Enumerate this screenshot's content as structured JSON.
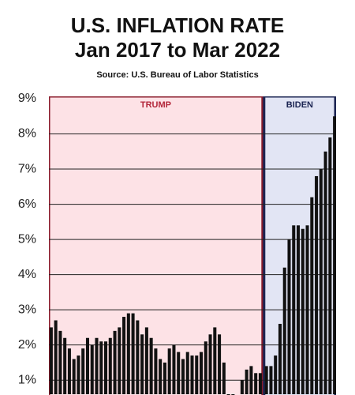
{
  "chart_data": {
    "type": "bar",
    "title": "U.S. INFLATION RATE",
    "subtitle": "Jan 2017 to Mar 2022",
    "source": "Source: U.S. Bureau of Labor Statistics",
    "regions": [
      {
        "label": "TRUMP",
        "color": "#fde2e6",
        "border": "#8a1c2c",
        "label_color": "#b3263a"
      },
      {
        "label": "BIDEN",
        "color": "#e2e5f4",
        "border": "#1b2452",
        "label_color": "#1b2452"
      }
    ],
    "categories": [
      null,
      null,
      null,
      null,
      null,
      null,
      null,
      null,
      null,
      null,
      null,
      null,
      null,
      null,
      null,
      null,
      null,
      null,
      null,
      null,
      null,
      null,
      null,
      null,
      null,
      null,
      null,
      null,
      null,
      null,
      null,
      null,
      null,
      null,
      null,
      null,
      null,
      null,
      null,
      null,
      null,
      null,
      null,
      null,
      null,
      null,
      null,
      null,
      null,
      null,
      null,
      null,
      null,
      null,
      null,
      null,
      null,
      null,
      null,
      null,
      null,
      null,
      null
    ],
    "values": [
      2.5,
      2.7,
      2.4,
      2.2,
      1.9,
      1.6,
      1.7,
      1.9,
      2.2,
      2.0,
      2.2,
      2.1,
      2.1,
      2.2,
      2.4,
      2.5,
      2.8,
      2.9,
      2.9,
      2.7,
      2.3,
      2.5,
      2.2,
      1.9,
      1.6,
      1.5,
      1.9,
      2.0,
      1.8,
      1.6,
      1.8,
      1.7,
      1.7,
      1.8,
      2.1,
      2.3,
      2.5,
      2.3,
      1.5,
      0.3,
      0.1,
      0.6,
      1.0,
      1.3,
      1.4,
      1.2,
      1.2,
      1.4,
      1.4,
      1.7,
      2.6,
      4.2,
      5.0,
      5.4,
      5.4,
      5.3,
      5.4,
      6.2,
      6.8,
      7.0,
      7.5,
      7.9,
      8.5
    ],
    "color": "#111111",
    "ylim": [
      0.6,
      9
    ],
    "yticks": [
      {
        "value": 1,
        "label": "1%"
      },
      {
        "value": 2,
        "label": "2%"
      },
      {
        "value": 3,
        "label": "3%"
      },
      {
        "value": 4,
        "label": "4%"
      },
      {
        "value": 5,
        "label": "5%"
      },
      {
        "value": 6,
        "label": "6%"
      },
      {
        "value": 7,
        "label": "7%"
      },
      {
        "value": 8,
        "label": "8%"
      },
      {
        "value": 9,
        "label": "9%"
      }
    ],
    "grid": true
  }
}
